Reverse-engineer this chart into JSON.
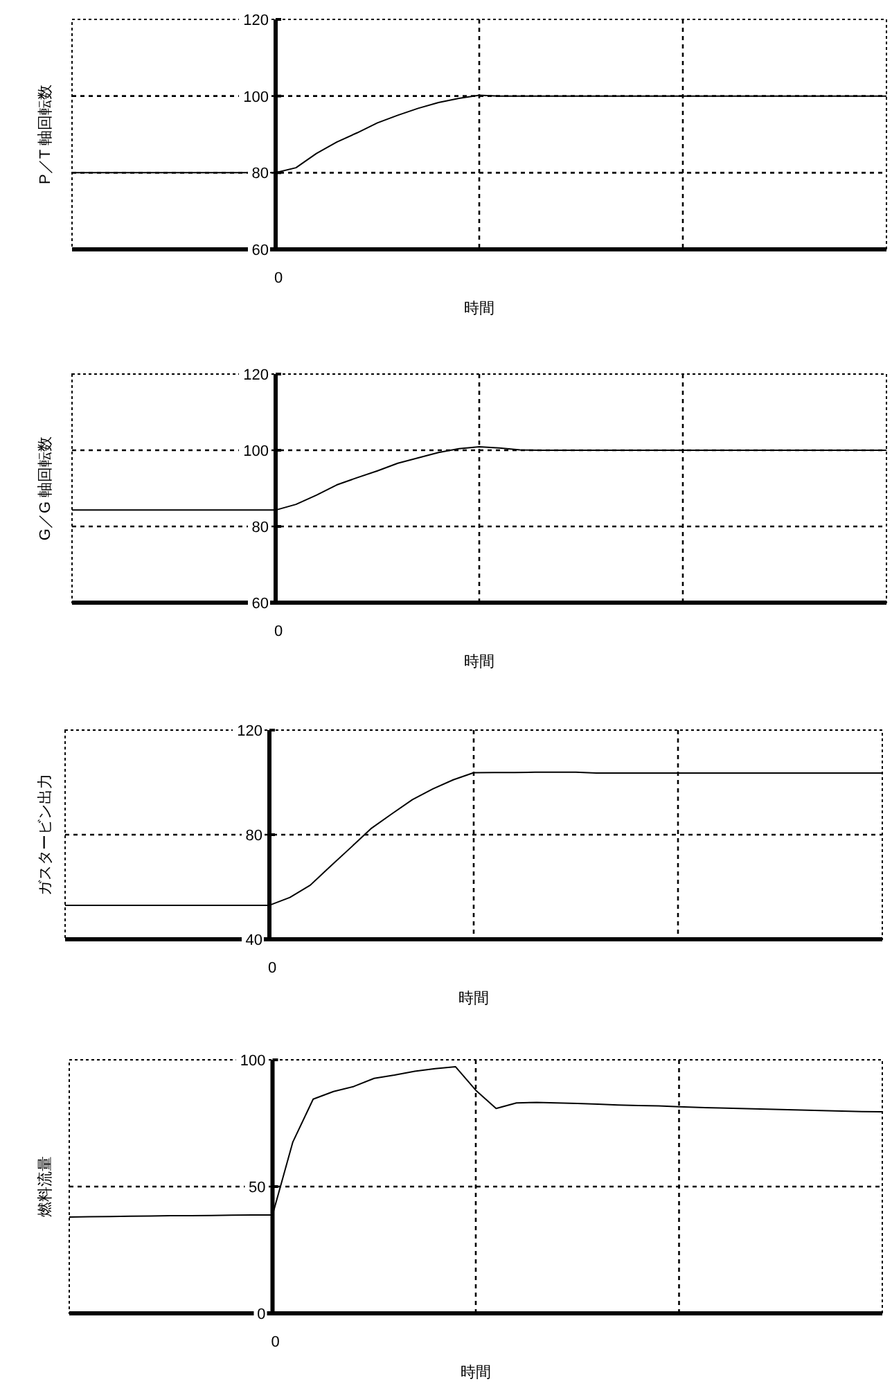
{
  "chart_data": [
    {
      "type": "line",
      "ylabel": "P／T 軸回転数",
      "xlabel": "時間",
      "ylim": [
        60,
        120
      ],
      "yticks": [
        60,
        80,
        100,
        120
      ],
      "grid": true,
      "line_style": "solid",
      "categories": [
        null,
        null,
        null,
        null,
        null,
        null,
        null,
        null,
        null,
        null,
        "0",
        null,
        null,
        null,
        null,
        null,
        null,
        null,
        null,
        null,
        null,
        null,
        null,
        null,
        null,
        null,
        null,
        null,
        null,
        null,
        null,
        null,
        null,
        null,
        null,
        null,
        null,
        null,
        null,
        null,
        null
      ],
      "series": [
        {
          "color": "#000000",
          "values": [
            80,
            80,
            80,
            80,
            80,
            80,
            80,
            80,
            80,
            80,
            80,
            81.3,
            85,
            88,
            90.4,
            93,
            95,
            96.8,
            98.3,
            99.4,
            100.2,
            100,
            100,
            100,
            100,
            100,
            100,
            100,
            100,
            100,
            100,
            100,
            100,
            100,
            100,
            100,
            100,
            100,
            100,
            100,
            100
          ]
        }
      ]
    },
    {
      "type": "line",
      "ylabel": "G／G 軸回転数",
      "xlabel": "時間",
      "ylim": [
        60,
        120
      ],
      "yticks": [
        60,
        80,
        100,
        120
      ],
      "grid": true,
      "line_style": "solid",
      "categories": [
        null,
        null,
        null,
        null,
        null,
        null,
        null,
        null,
        null,
        null,
        "0",
        null,
        null,
        null,
        null,
        null,
        null,
        null,
        null,
        null,
        null,
        null,
        null,
        null,
        null,
        null,
        null,
        null,
        null,
        null,
        null,
        null,
        null,
        null,
        null,
        null,
        null,
        null,
        null,
        null,
        null
      ],
      "series": [
        {
          "color": "#000000",
          "values": [
            84.3,
            84.3,
            84.3,
            84.3,
            84.3,
            84.3,
            84.3,
            84.3,
            84.3,
            84.3,
            84.3,
            85.8,
            88.2,
            90.9,
            92.8,
            94.6,
            96.6,
            98,
            99.4,
            100.4,
            100.9,
            100.6,
            100.1,
            100,
            100,
            100,
            100,
            100,
            100,
            100,
            100,
            100,
            100,
            100,
            100,
            100,
            100,
            100,
            100,
            100,
            100
          ]
        }
      ]
    },
    {
      "type": "line",
      "ylabel": "ガスタービン出力",
      "xlabel": "時間",
      "ylim": [
        40,
        120
      ],
      "yticks": [
        40,
        80,
        120
      ],
      "grid": true,
      "line_style": "solid",
      "categories": [
        null,
        null,
        null,
        null,
        null,
        null,
        null,
        null,
        null,
        null,
        "0",
        null,
        null,
        null,
        null,
        null,
        null,
        null,
        null,
        null,
        null,
        null,
        null,
        null,
        null,
        null,
        null,
        null,
        null,
        null,
        null,
        null,
        null,
        null,
        null,
        null,
        null,
        null,
        null,
        null,
        null
      ],
      "series": [
        {
          "color": "#000000",
          "values": [
            53,
            53,
            53,
            53,
            53,
            53,
            53,
            53,
            53,
            53,
            53,
            56,
            60.7,
            68,
            75.2,
            82.5,
            88,
            93.4,
            97.5,
            101,
            103.7,
            103.8,
            103.8,
            103.9,
            103.9,
            103.9,
            103.6,
            103.6,
            103.6,
            103.6,
            103.6,
            103.6,
            103.6,
            103.6,
            103.6,
            103.6,
            103.6,
            103.6,
            103.6,
            103.6,
            103.6
          ]
        }
      ]
    },
    {
      "type": "line",
      "ylabel": "燃料流量",
      "xlabel": "時間",
      "ylim": [
        0,
        100
      ],
      "yticks": [
        0,
        50,
        100
      ],
      "grid": true,
      "line_style": "solid",
      "categories": [
        null,
        null,
        null,
        null,
        null,
        null,
        null,
        null,
        null,
        null,
        "0",
        null,
        null,
        null,
        null,
        null,
        null,
        null,
        null,
        null,
        null,
        null,
        null,
        null,
        null,
        null,
        null,
        null,
        null,
        null,
        null,
        null,
        null,
        null,
        null,
        null,
        null,
        null,
        null,
        null,
        null
      ],
      "series": [
        {
          "color": "#000000",
          "values": [
            38,
            38.1,
            38.2,
            38.3,
            38.4,
            38.5,
            38.5,
            38.6,
            38.7,
            38.8,
            38.8,
            67.6,
            84.5,
            87.5,
            89.5,
            92.7,
            94,
            95.5,
            96.5,
            97.3,
            88,
            80.8,
            83,
            83.2,
            83,
            82.8,
            82.5,
            82.2,
            82,
            81.8,
            81.5,
            81.2,
            81,
            80.8,
            80.6,
            80.4,
            80.2,
            80,
            79.8,
            79.6,
            79.5
          ]
        }
      ]
    }
  ]
}
